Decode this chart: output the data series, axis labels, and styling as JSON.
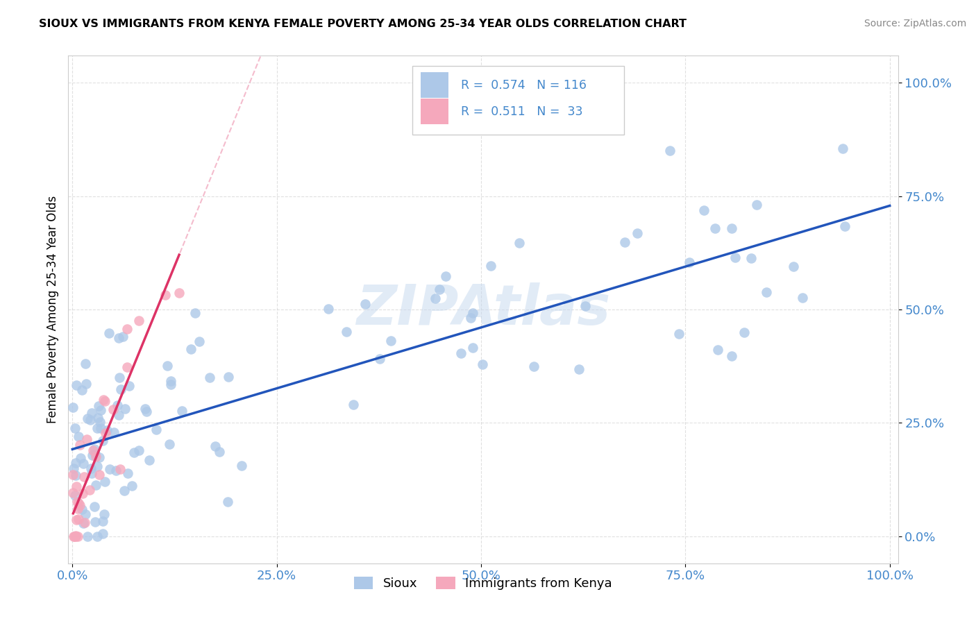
{
  "title": "SIOUX VS IMMIGRANTS FROM KENYA FEMALE POVERTY AMONG 25-34 YEAR OLDS CORRELATION CHART",
  "source": "Source: ZipAtlas.com",
  "ylabel": "Female Poverty Among 25-34 Year Olds",
  "legend_labels": [
    "Sioux",
    "Immigrants from Kenya"
  ],
  "sioux_R": "0.574",
  "sioux_N": "116",
  "kenya_R": "0.511",
  "kenya_N": "33",
  "sioux_color": "#adc8e8",
  "kenya_color": "#f5a8bc",
  "sioux_line_color": "#2255bb",
  "kenya_line_color": "#dd3366",
  "kenya_dash_color": "#f0a0b8",
  "watermark_color": "#c5d8ee",
  "tick_color": "#4488cc",
  "bg_color": "#ffffff"
}
